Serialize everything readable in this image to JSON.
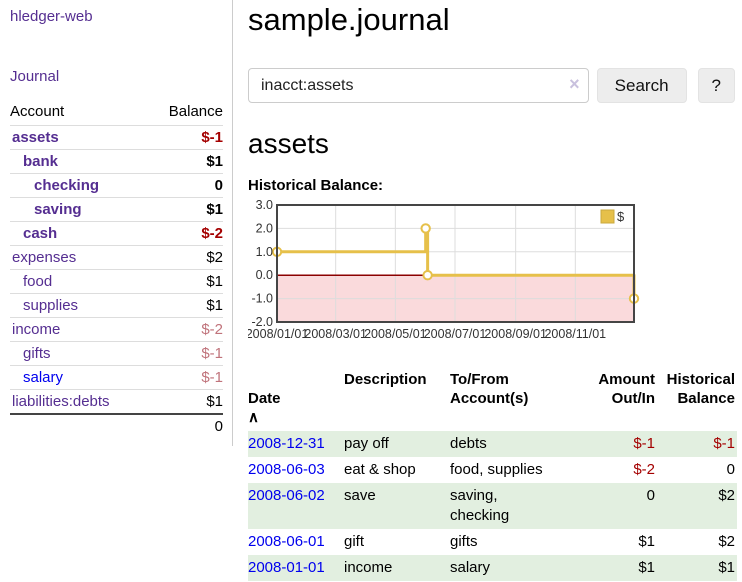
{
  "app": {
    "brand": "hledger-web"
  },
  "colors": {
    "link_purple": "#552e91",
    "link_blue": "#0000ee",
    "negative_strong": "#a40000",
    "negative_muted": "#c0737b",
    "row_green": "#e2efe0",
    "button_bg": "#ededed"
  },
  "sidebar": {
    "journal_label": "Journal",
    "accounts": {
      "headers": [
        "Account",
        "Balance"
      ],
      "rows": [
        {
          "account": "assets",
          "indent": 0,
          "bold": true,
          "balance": "$-1",
          "neg": "strong"
        },
        {
          "account": "bank",
          "indent": 1,
          "bold": true,
          "balance": "$1"
        },
        {
          "account": "checking",
          "indent": 2,
          "bold": true,
          "balance": "0"
        },
        {
          "account": "saving",
          "indent": 2,
          "bold": true,
          "balance": "$1"
        },
        {
          "account": "cash",
          "indent": 1,
          "bold": true,
          "balance": "$-2",
          "neg": "strong"
        },
        {
          "account": "expenses",
          "indent": 0,
          "bold": false,
          "balance": "$2"
        },
        {
          "account": "food",
          "indent": 1,
          "bold": false,
          "balance": "$1"
        },
        {
          "account": "supplies",
          "indent": 1,
          "bold": false,
          "balance": "$1"
        },
        {
          "account": "income",
          "indent": 0,
          "bold": false,
          "balance": "$-2",
          "neg": "muted"
        },
        {
          "account": "gifts",
          "indent": 1,
          "bold": false,
          "balance": "$-1",
          "neg": "muted"
        },
        {
          "account": "salary",
          "indent": 1,
          "bold": false,
          "balance": "$-1",
          "neg": "muted",
          "link_color": "blue"
        },
        {
          "account": "liabilities:debts",
          "indent": 0,
          "bold": false,
          "balance": "$1"
        }
      ],
      "total": "0"
    }
  },
  "main": {
    "title": "sample.journal",
    "search": {
      "value": "inacct:assets",
      "clear_icon": "×",
      "button_label": "Search",
      "help_label": "?"
    },
    "account_heading": "assets"
  },
  "chart_data": {
    "type": "line",
    "title": "Historical Balance:",
    "step": true,
    "series": [
      {
        "name": "$",
        "points": [
          {
            "date": "2008-01-01",
            "day": 0,
            "value": 1
          },
          {
            "date": "2008-06-01",
            "day": 152,
            "value": 2
          },
          {
            "date": "2008-06-03",
            "day": 154,
            "value": 0
          },
          {
            "date": "2008-12-31",
            "day": 365,
            "value": -1
          }
        ]
      }
    ],
    "x_ticks": [
      {
        "label": "2008/01/01",
        "day": 0
      },
      {
        "label": "2008/03/01",
        "day": 60
      },
      {
        "label": "2008/05/01",
        "day": 121
      },
      {
        "label": "2008/07/01",
        "day": 182
      },
      {
        "label": "2008/09/01",
        "day": 244
      },
      {
        "label": "2008/11/01",
        "day": 305
      }
    ],
    "y_ticks": [
      "3.0",
      "2.0",
      "1.0",
      "0.0",
      "-1.0",
      "-2.0"
    ],
    "ylim": [
      -2,
      3
    ],
    "x_range_days": [
      0,
      365
    ],
    "legend": {
      "label": "$",
      "position": "top-right"
    },
    "grid": true,
    "colors": {
      "line": "#e6c04a",
      "marker_fill": "#ffffff",
      "negative_fill": "#fadadc",
      "zero_line": "#8b0000",
      "grid": "#dddddd",
      "border": "#454545",
      "label": "#333333"
    }
  },
  "transactions": {
    "headers": {
      "date": "Date",
      "sort_icon": "∧",
      "description": "Description",
      "accounts": "To/From\nAccount(s)",
      "amount": "Amount\nOut/In",
      "balance": "Historical\nBalance"
    },
    "rows": [
      {
        "date": "2008-12-31",
        "description": "pay off",
        "accounts": "debts",
        "amount": "$-1",
        "amount_neg": true,
        "balance": "$-1",
        "balance_neg": true
      },
      {
        "date": "2008-06-03",
        "description": "eat & shop",
        "accounts": "food, supplies",
        "amount": "$-2",
        "amount_neg": true,
        "balance": "0",
        "balance_neg": false
      },
      {
        "date": "2008-06-02",
        "description": "save",
        "accounts": "saving,\nchecking",
        "amount": "0",
        "amount_neg": false,
        "balance": "$2",
        "balance_neg": false
      },
      {
        "date": "2008-06-01",
        "description": "gift",
        "accounts": "gifts",
        "amount": "$1",
        "amount_neg": false,
        "balance": "$2",
        "balance_neg": false
      },
      {
        "date": "2008-01-01",
        "description": "income",
        "accounts": "salary",
        "amount": "$1",
        "amount_neg": false,
        "balance": "$1",
        "balance_neg": false
      }
    ]
  }
}
